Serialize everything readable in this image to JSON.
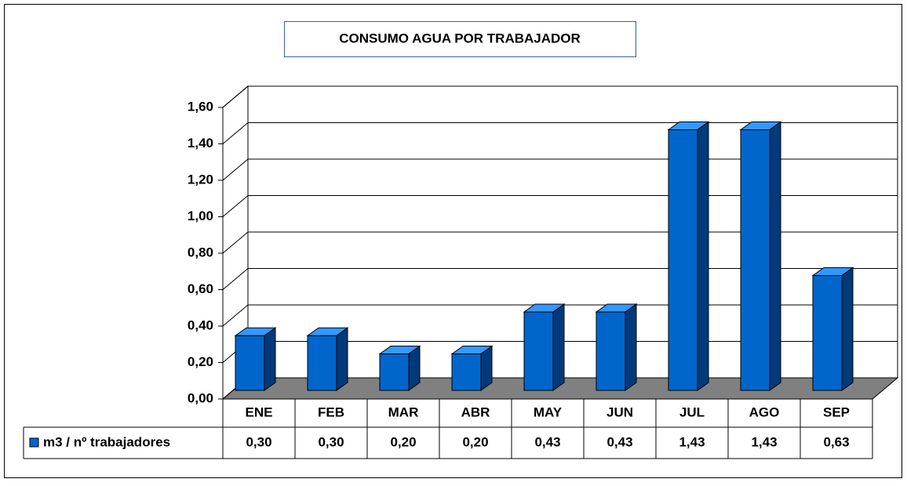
{
  "chart_data": {
    "type": "bar3d",
    "title": "CONSUMO AGUA POR TRABAJADOR",
    "categories": [
      "ENE",
      "FEB",
      "MAR",
      "ABR",
      "MAY",
      "JUN",
      "JUL",
      "AGO",
      "SEP"
    ],
    "series": [
      {
        "name": "m3 / nº trabajadores",
        "color": "#0066cc",
        "values": [
          0.3,
          0.3,
          0.2,
          0.2,
          0.43,
          0.43,
          1.43,
          1.43,
          0.63
        ],
        "value_labels": [
          "0,30",
          "0,30",
          "0,20",
          "0,20",
          "0,43",
          "0,43",
          "1,43",
          "1,43",
          "0,63"
        ]
      }
    ],
    "ylim": [
      0,
      1.6
    ],
    "yticks": [
      {
        "value": 0,
        "label": "0,00"
      },
      {
        "value": 0.2,
        "label": "0,20"
      },
      {
        "value": 0.4,
        "label": "0,40"
      },
      {
        "value": 0.6,
        "label": "0,60"
      },
      {
        "value": 0.8,
        "label": "0,80"
      },
      {
        "value": 1.0,
        "label": "1,00"
      },
      {
        "value": 1.2,
        "label": "1,20"
      },
      {
        "value": 1.4,
        "label": "1,40"
      },
      {
        "value": 1.6,
        "label": "1,60"
      }
    ],
    "grid": true,
    "data_table": true
  }
}
